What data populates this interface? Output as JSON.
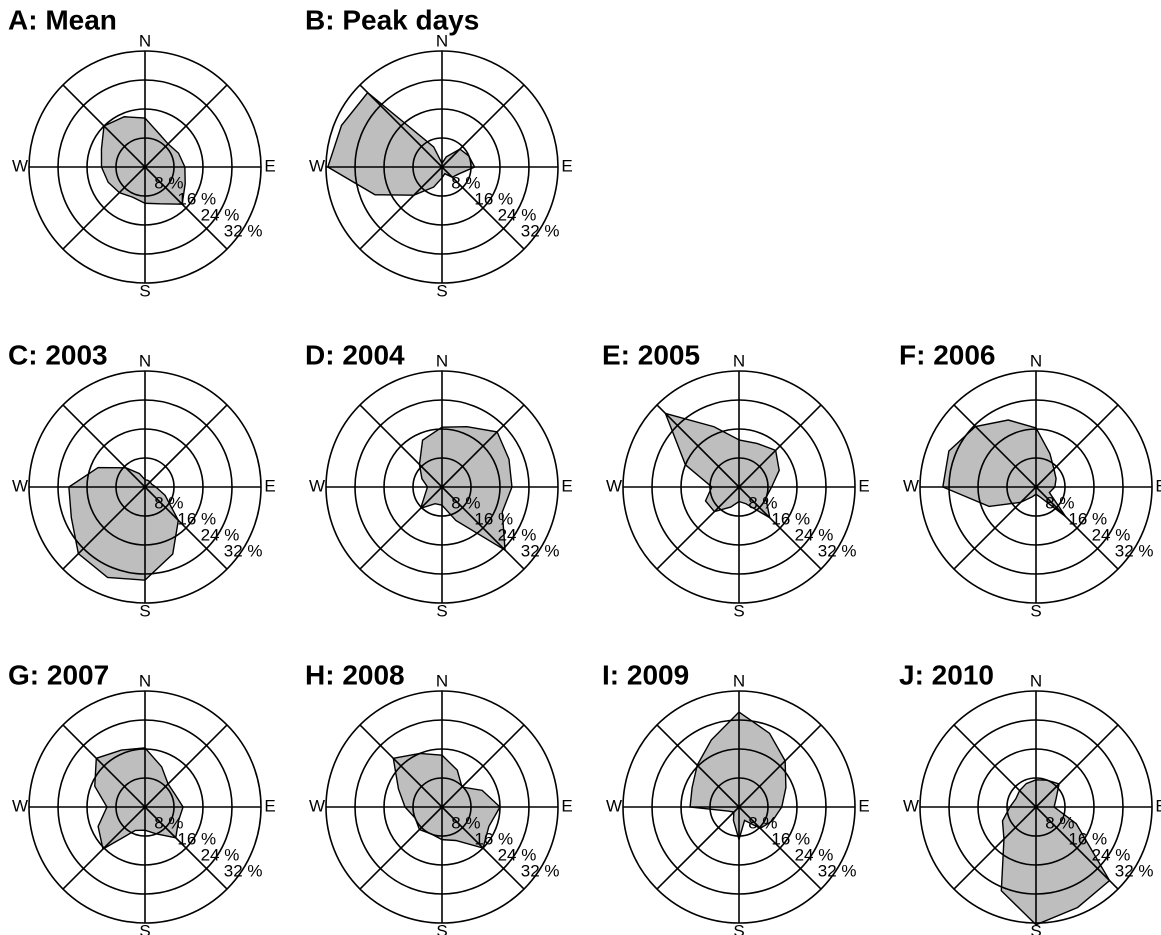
{
  "chart_data": [
    {
      "type": "radar",
      "title": "A: Mean",
      "color": "#bebebe",
      "categories": [
        "N",
        null,
        null,
        null,
        "E",
        null,
        null,
        null,
        "S",
        null,
        null,
        null,
        "W",
        null,
        null,
        null
      ],
      "values": [
        13.5,
        10,
        9,
        10,
        11,
        12,
        14.5,
        11,
        10,
        9,
        10,
        11,
        12,
        13,
        16,
        15
      ],
      "rlim": [
        0,
        32
      ],
      "rticks": [
        {
          "value": 8,
          "label": "8 %"
        },
        {
          "value": 16,
          "label": "16 %"
        },
        {
          "value": 24,
          "label": "24 %"
        },
        {
          "value": 32,
          "label": "32 %"
        }
      ]
    },
    {
      "type": "radar",
      "title": "B: Peak days",
      "color": "#bebebe",
      "categories": [
        "N",
        null,
        null,
        null,
        "E",
        null,
        null,
        null,
        "S",
        null,
        null,
        null,
        "W",
        null,
        null,
        null
      ],
      "values": [
        1,
        3,
        7,
        8,
        9,
        5,
        4,
        2,
        3,
        6,
        11,
        20,
        31.5,
        30,
        29,
        6
      ],
      "rlim": [
        0,
        32
      ],
      "rticks": [
        {
          "value": 8,
          "label": "8 %"
        },
        {
          "value": 16,
          "label": "16 %"
        },
        {
          "value": 24,
          "label": "24 %"
        },
        {
          "value": 32,
          "label": "32 %"
        }
      ]
    },
    {
      "type": "radar",
      "title": "C: 2003",
      "color": "#bebebe",
      "categories": [
        "N",
        null,
        null,
        null,
        "E",
        null,
        null,
        null,
        "S",
        null,
        null,
        null,
        "W",
        null,
        null,
        null
      ],
      "values": [
        2,
        2,
        2,
        2,
        3,
        6,
        13,
        20,
        25.7,
        27,
        26,
        22,
        21,
        14,
        7.5,
        4
      ],
      "rlim": [
        0,
        32
      ],
      "rticks": [
        {
          "value": 8,
          "label": "8 %"
        },
        {
          "value": 16,
          "label": "16 %"
        },
        {
          "value": 24,
          "label": "24 %"
        },
        {
          "value": 32,
          "label": "32 %"
        }
      ]
    },
    {
      "type": "radar",
      "title": "D: 2004",
      "color": "#bebebe",
      "categories": [
        "N",
        null,
        null,
        null,
        "E",
        null,
        null,
        null,
        "S",
        null,
        null,
        null,
        "W",
        null,
        null,
        null
      ],
      "values": [
        16.5,
        18,
        21.5,
        20,
        19.3,
        18,
        24.6,
        10,
        5,
        5,
        8.3,
        5,
        4,
        6,
        8.8,
        14
      ],
      "rlim": [
        0,
        32
      ],
      "rticks": [
        {
          "value": 8,
          "label": "8 %"
        },
        {
          "value": 16,
          "label": "16 %"
        },
        {
          "value": 24,
          "label": "24 %"
        },
        {
          "value": 32,
          "label": "32 %"
        }
      ]
    },
    {
      "type": "radar",
      "title": "E: 2005",
      "color": "#bebebe",
      "categories": [
        "N",
        null,
        null,
        null,
        "E",
        null,
        null,
        null,
        "S",
        null,
        null,
        null,
        "W",
        null,
        null,
        null
      ],
      "values": [
        13,
        13,
        14.3,
        12,
        9,
        8,
        12,
        5,
        4,
        6,
        9.6,
        10,
        7.5,
        16,
        28.7,
        18
      ],
      "rlim": [
        0,
        32
      ],
      "rticks": [
        {
          "value": 8,
          "label": "8 %"
        },
        {
          "value": 16,
          "label": "16 %"
        },
        {
          "value": 24,
          "label": "24 %"
        },
        {
          "value": 32,
          "label": "32 %"
        }
      ]
    },
    {
      "type": "radar",
      "title": "F: 2006",
      "color": "#bebebe",
      "categories": [
        "N",
        null,
        null,
        null,
        "E",
        null,
        null,
        null,
        "S",
        null,
        null,
        null,
        "W",
        null,
        null,
        null
      ],
      "values": [
        16.3,
        10,
        7,
        6,
        5.2,
        4,
        11.6,
        3,
        2,
        3,
        6,
        14,
        25.7,
        26,
        23.6,
        20
      ],
      "rlim": [
        0,
        32
      ],
      "rticks": [
        {
          "value": 8,
          "label": "8 %"
        },
        {
          "value": 16,
          "label": "16 %"
        },
        {
          "value": 24,
          "label": "24 %"
        },
        {
          "value": 32,
          "label": "32 %"
        }
      ]
    },
    {
      "type": "radar",
      "title": "G: 2007",
      "color": "#bebebe",
      "categories": [
        "N",
        null,
        null,
        null,
        "E",
        null,
        null,
        null,
        "S",
        null,
        null,
        null,
        "W",
        null,
        null,
        null
      ],
      "values": [
        16.3,
        12,
        9,
        9,
        10.5,
        10,
        12,
        8,
        6.4,
        7,
        16.4,
        14,
        10.5,
        15,
        19,
        17
      ],
      "rlim": [
        0,
        32
      ],
      "rticks": [
        {
          "value": 8,
          "label": "8 %"
        },
        {
          "value": 16,
          "label": "16 %"
        },
        {
          "value": 24,
          "label": "24 %"
        },
        {
          "value": 32,
          "label": "32 %"
        }
      ]
    },
    {
      "type": "radar",
      "title": "H: 2008",
      "color": "#bebebe",
      "categories": [
        "N",
        null,
        null,
        null,
        "E",
        null,
        null,
        null,
        "S",
        null,
        null,
        null,
        "W",
        null,
        null,
        null
      ],
      "values": [
        14.3,
        11,
        7.8,
        12,
        16,
        14,
        16,
        10,
        9,
        8,
        8.8,
        8,
        10.2,
        13,
        19,
        16
      ],
      "rlim": [
        0,
        32
      ],
      "rticks": [
        {
          "value": 8,
          "label": "8 %"
        },
        {
          "value": 16,
          "label": "16 %"
        },
        {
          "value": 24,
          "label": "24 %"
        },
        {
          "value": 32,
          "label": "32 %"
        }
      ]
    },
    {
      "type": "radar",
      "title": "I: 2009",
      "color": "#bebebe",
      "categories": [
        "N",
        null,
        null,
        null,
        "E",
        null,
        null,
        null,
        "S",
        null,
        null,
        null,
        "W",
        null,
        null,
        null
      ],
      "values": [
        26.2,
        22,
        18,
        14,
        11.8,
        10,
        8.3,
        4,
        9,
        4,
        2,
        3,
        13.5,
        14,
        16.3,
        20
      ],
      "rlim": [
        0,
        32
      ],
      "rticks": [
        {
          "value": 8,
          "label": "8 %"
        },
        {
          "value": 16,
          "label": "16 %"
        },
        {
          "value": 24,
          "label": "24 %"
        },
        {
          "value": 32,
          "label": "32 %"
        }
      ]
    },
    {
      "type": "radar",
      "title": "J: 2010",
      "color": "#bebebe",
      "categories": [
        "N",
        null,
        null,
        null,
        "E",
        null,
        null,
        null,
        "S",
        null,
        null,
        null,
        "W",
        null,
        null,
        null
      ],
      "values": [
        7.5,
        8,
        9,
        6,
        5,
        12,
        28.7,
        30,
        32.5,
        25,
        12.5,
        10,
        7.2,
        6,
        6.4,
        7
      ],
      "rlim": [
        0,
        32
      ],
      "rticks": [
        {
          "value": 8,
          "label": "8 %"
        },
        {
          "value": 16,
          "label": "16 %"
        },
        {
          "value": 24,
          "label": "24 %"
        },
        {
          "value": 32,
          "label": "32 %"
        }
      ]
    }
  ]
}
